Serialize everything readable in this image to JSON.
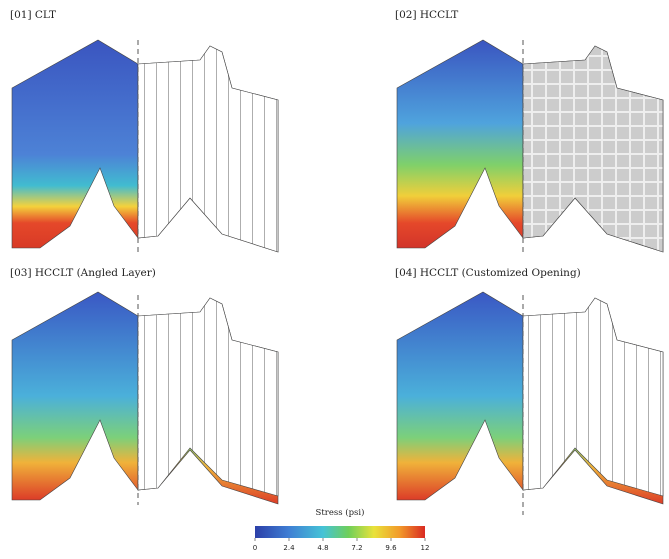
{
  "panels": [
    {
      "label": "[01] CLT"
    },
    {
      "label": "[02] HCCLT"
    },
    {
      "label": "[03] HCCLT (Angled Layer)"
    },
    {
      "label": "[04] HCCLT (Customized Opening)"
    }
  ],
  "legend": {
    "title": "Stress (psi)",
    "range": [
      0,
      12
    ],
    "ticks": [
      0,
      2.4,
      4.8,
      7.2,
      9.6,
      12
    ]
  }
}
